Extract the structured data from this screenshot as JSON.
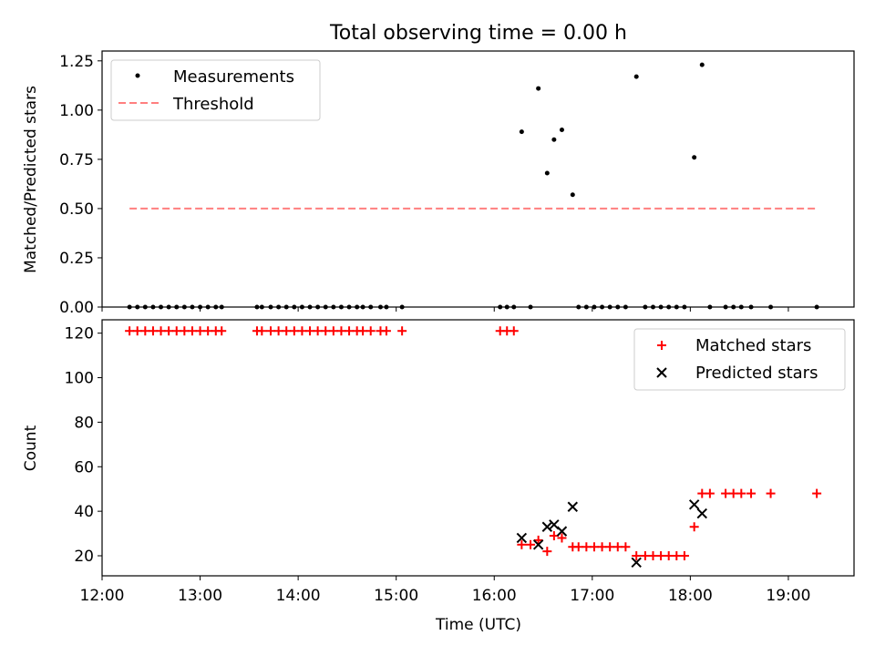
{
  "figure_title": "Total observing time = 0.00 h",
  "colors": {
    "measurement": "#000000",
    "threshold": "#ff7f7f",
    "matched": "#ff0000",
    "predicted": "#000000"
  },
  "chart_data": [
    {
      "type": "scatter",
      "title": "Total observing time = 0.00 h",
      "xlabel": "",
      "ylabel": "Matched/Predicted stars",
      "xlim": [
        12.0,
        19.67
      ],
      "ylim": [
        0.0,
        1.3
      ],
      "yticks": [
        0.0,
        0.25,
        0.5,
        0.75,
        1.0,
        1.25
      ],
      "ytick_labels": [
        "0.00",
        "0.25",
        "0.50",
        "0.75",
        "1.00",
        "1.25"
      ],
      "grid": false,
      "legend": {
        "position": "top-left",
        "entries": [
          "Measurements",
          "Threshold"
        ]
      },
      "series": [
        {
          "name": "Measurements",
          "marker": "dot",
          "x": [
            12.28,
            12.36,
            12.44,
            12.52,
            12.6,
            12.68,
            12.76,
            12.84,
            12.92,
            13.0,
            13.08,
            13.16,
            13.22,
            13.58,
            13.63,
            13.72,
            13.8,
            13.88,
            13.96,
            14.04,
            14.12,
            14.2,
            14.28,
            14.36,
            14.44,
            14.52,
            14.6,
            14.66,
            14.74,
            14.84,
            14.9,
            15.06,
            16.06,
            16.13,
            16.2,
            16.28,
            16.37,
            16.45,
            16.54,
            16.61,
            16.69,
            16.8,
            16.86,
            16.94,
            17.02,
            17.1,
            17.18,
            17.26,
            17.34,
            17.45,
            17.54,
            17.62,
            17.7,
            17.78,
            17.86,
            17.94,
            18.04,
            18.12,
            18.2,
            18.36,
            18.44,
            18.52,
            18.62,
            18.82,
            19.29
          ],
          "y": [
            0,
            0,
            0,
            0,
            0,
            0,
            0,
            0,
            0,
            0,
            0,
            0,
            0,
            0,
            0,
            0,
            0,
            0,
            0,
            0,
            0,
            0,
            0,
            0,
            0,
            0,
            0,
            0,
            0,
            0,
            0,
            0,
            0,
            0,
            0,
            0.89,
            0,
            1.11,
            0.68,
            0.85,
            0.9,
            0.57,
            0,
            0,
            0,
            0,
            0,
            0,
            0,
            1.17,
            0,
            0,
            0,
            0,
            0,
            0,
            0.76,
            1.23,
            0,
            0,
            0,
            0,
            0,
            0,
            0
          ]
        },
        {
          "name": "Threshold",
          "style": "dashed",
          "x": [
            12.28,
            19.29
          ],
          "y": [
            0.5,
            0.5
          ]
        }
      ]
    },
    {
      "type": "scatter",
      "title": "",
      "xlabel": "Time (UTC)",
      "ylabel": "Count",
      "xlim": [
        12.0,
        19.67
      ],
      "ylim": [
        11,
        126
      ],
      "yticks": [
        20,
        40,
        60,
        80,
        100,
        120
      ],
      "xticks": [
        12,
        13,
        14,
        15,
        16,
        17,
        18,
        19
      ],
      "xtick_labels": [
        "12:00",
        "13:00",
        "14:00",
        "15:00",
        "16:00",
        "17:00",
        "18:00",
        "19:00"
      ],
      "grid": false,
      "legend": {
        "position": "top-right",
        "entries": [
          "Matched stars",
          "Predicted stars"
        ]
      },
      "series": [
        {
          "name": "Matched stars",
          "marker": "plus",
          "x": [
            12.28,
            12.36,
            12.44,
            12.52,
            12.6,
            12.68,
            12.76,
            12.84,
            12.92,
            13.0,
            13.08,
            13.16,
            13.22,
            13.58,
            13.63,
            13.72,
            13.8,
            13.88,
            13.96,
            14.04,
            14.12,
            14.2,
            14.28,
            14.36,
            14.44,
            14.52,
            14.6,
            14.66,
            14.74,
            14.84,
            14.9,
            15.06,
            16.06,
            16.13,
            16.2,
            16.28,
            16.37,
            16.45,
            16.54,
            16.61,
            16.69,
            16.8,
            16.86,
            16.94,
            17.02,
            17.1,
            17.18,
            17.26,
            17.34,
            17.45,
            17.54,
            17.62,
            17.7,
            17.78,
            17.86,
            17.94,
            18.04,
            18.12,
            18.2,
            18.36,
            18.44,
            18.52,
            18.62,
            18.82,
            19.29
          ],
          "y": [
            121,
            121,
            121,
            121,
            121,
            121,
            121,
            121,
            121,
            121,
            121,
            121,
            121,
            121,
            121,
            121,
            121,
            121,
            121,
            121,
            121,
            121,
            121,
            121,
            121,
            121,
            121,
            121,
            121,
            121,
            121,
            121,
            121,
            121,
            121,
            25,
            25,
            27,
            22,
            29,
            28,
            24,
            24,
            24,
            24,
            24,
            24,
            24,
            24,
            20,
            20,
            20,
            20,
            20,
            20,
            20,
            33,
            48,
            48,
            48,
            48,
            48,
            48,
            48,
            48
          ]
        },
        {
          "name": "Predicted stars",
          "marker": "x",
          "x": [
            16.28,
            16.45,
            16.54,
            16.61,
            16.69,
            16.8,
            17.45,
            18.04,
            18.12
          ],
          "y": [
            28,
            25,
            33,
            34,
            31,
            42,
            17,
            43,
            39
          ]
        }
      ]
    }
  ]
}
